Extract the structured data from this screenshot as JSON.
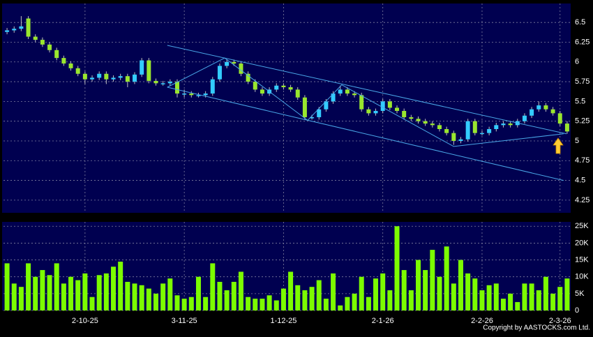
{
  "chart_data": [
    {
      "type": "candlestick",
      "up_color": "#33ccff",
      "down_color": "#99e62e",
      "wick_color": "#c0c0c0",
      "grid": true,
      "ylim": [
        4.09,
        6.74
      ],
      "yticks": [
        4.25,
        4.5,
        4.75,
        5,
        5.25,
        5.5,
        5.75,
        6,
        6.25,
        6.5
      ],
      "open": [
        6.38,
        6.4,
        6.42,
        6.55,
        6.32,
        6.28,
        6.22,
        6.15,
        6.05,
        5.98,
        5.92,
        5.85,
        5.78,
        5.8,
        5.85,
        5.78,
        5.8,
        5.82,
        5.75,
        5.84,
        6.02,
        5.76,
        5.73,
        5.73,
        5.75,
        5.6,
        5.6,
        5.58,
        5.58,
        5.6,
        5.78,
        5.95,
        6.0,
        5.98,
        5.85,
        5.75,
        5.65,
        5.6,
        5.65,
        5.7,
        5.68,
        5.65,
        5.55,
        5.3,
        5.3,
        5.4,
        5.5,
        5.6,
        5.65,
        5.6,
        5.58,
        5.4,
        5.35,
        5.38,
        5.5,
        5.42,
        5.38,
        5.3,
        5.28,
        5.25,
        5.22,
        5.2,
        5.15,
        5.1,
        5.0,
        5.02,
        5.25,
        5.1,
        5.1,
        5.15,
        5.2,
        5.22,
        5.2,
        5.25,
        5.32,
        5.4,
        5.45,
        5.4,
        5.35,
        5.22
      ],
      "high": [
        6.43,
        6.45,
        6.58,
        6.58,
        6.35,
        6.31,
        6.25,
        6.18,
        6.08,
        6.01,
        5.95,
        5.88,
        5.83,
        5.88,
        5.88,
        5.83,
        5.85,
        5.85,
        5.87,
        6.05,
        6.05,
        5.79,
        5.76,
        5.78,
        5.78,
        5.65,
        5.63,
        5.61,
        5.63,
        5.81,
        5.98,
        6.03,
        6.03,
        6.01,
        5.88,
        5.78,
        5.68,
        5.68,
        5.73,
        5.73,
        5.71,
        5.68,
        5.58,
        5.33,
        5.43,
        5.53,
        5.63,
        5.7,
        5.68,
        5.63,
        5.61,
        5.43,
        5.41,
        5.53,
        5.53,
        5.45,
        5.41,
        5.33,
        5.31,
        5.28,
        5.25,
        5.23,
        5.18,
        5.13,
        5.05,
        5.28,
        5.28,
        5.13,
        5.18,
        5.23,
        5.25,
        5.25,
        5.28,
        5.35,
        5.43,
        5.5,
        5.48,
        5.43,
        5.38,
        5.25
      ],
      "low": [
        6.35,
        6.37,
        6.39,
        6.29,
        6.25,
        6.19,
        6.12,
        6.02,
        5.95,
        5.89,
        5.82,
        5.72,
        5.75,
        5.77,
        5.72,
        5.75,
        5.77,
        5.68,
        5.72,
        5.81,
        5.73,
        5.7,
        5.7,
        5.7,
        5.55,
        5.55,
        5.55,
        5.55,
        5.55,
        5.57,
        5.75,
        5.92,
        5.95,
        5.82,
        5.72,
        5.62,
        5.57,
        5.57,
        5.62,
        5.65,
        5.62,
        5.52,
        5.27,
        5.27,
        5.27,
        5.37,
        5.47,
        5.57,
        5.57,
        5.55,
        5.37,
        5.32,
        5.32,
        5.35,
        5.39,
        5.35,
        5.27,
        5.25,
        5.22,
        5.19,
        5.17,
        5.12,
        5.07,
        4.95,
        4.97,
        4.99,
        5.07,
        5.07,
        5.07,
        5.12,
        5.17,
        5.17,
        5.17,
        5.22,
        5.29,
        5.37,
        5.37,
        5.32,
        5.19,
        5.09
      ],
      "close": [
        6.4,
        6.42,
        6.45,
        6.32,
        6.28,
        6.22,
        6.15,
        6.05,
        5.98,
        5.92,
        5.85,
        5.78,
        5.8,
        5.85,
        5.78,
        5.8,
        5.82,
        5.75,
        5.84,
        6.02,
        5.76,
        5.73,
        5.73,
        5.75,
        5.6,
        5.6,
        5.58,
        5.58,
        5.6,
        5.78,
        5.95,
        6.0,
        5.98,
        5.85,
        5.75,
        5.65,
        5.6,
        5.65,
        5.7,
        5.68,
        5.65,
        5.55,
        5.3,
        5.3,
        5.4,
        5.5,
        5.6,
        5.65,
        5.6,
        5.58,
        5.4,
        5.35,
        5.38,
        5.5,
        5.42,
        5.38,
        5.3,
        5.28,
        5.25,
        5.22,
        5.2,
        5.15,
        5.1,
        5.0,
        5.02,
        5.25,
        5.1,
        5.1,
        5.15,
        5.2,
        5.22,
        5.2,
        5.25,
        5.32,
        5.4,
        5.45,
        5.4,
        5.35,
        5.22,
        5.12
      ],
      "trendlines": [
        {
          "color": "#4aa8e8",
          "x": [
            22.6,
            78.9
          ],
          "y": [
            6.21,
            5.09
          ]
        },
        {
          "color": "#4aa8e8",
          "x": [
            22.6,
            78.5
          ],
          "y": [
            5.68,
            4.5
          ]
        },
        {
          "color": "#4aa8e8",
          "x": [
            22.6,
            30.7,
            42.4,
            47.2,
            63.0,
            78.5
          ],
          "y": [
            5.68,
            6.05,
            5.26,
            5.71,
            4.93,
            5.09
          ]
        }
      ]
    },
    {
      "type": "bar",
      "color": "#7cfc00",
      "grid": true,
      "categories": [
        null,
        null,
        null,
        null,
        null,
        null,
        null,
        null,
        null,
        null,
        null,
        "2-10-25",
        null,
        null,
        null,
        null,
        null,
        null,
        null,
        null,
        null,
        null,
        null,
        null,
        null,
        "3-11-25",
        null,
        null,
        null,
        null,
        null,
        null,
        null,
        null,
        null,
        null,
        null,
        null,
        null,
        "1-12-25",
        null,
        null,
        null,
        null,
        null,
        null,
        null,
        null,
        null,
        null,
        null,
        null,
        null,
        "2-1-26",
        null,
        null,
        null,
        null,
        null,
        null,
        null,
        null,
        null,
        null,
        null,
        null,
        null,
        "2-2-26",
        null,
        null,
        null,
        null,
        null,
        null,
        null,
        null,
        null,
        null,
        "2-3-26",
        null
      ],
      "values": [
        14000,
        8000,
        7000,
        14000,
        10000,
        12000,
        10500,
        14000,
        8000,
        10000,
        9000,
        11000,
        4000,
        10500,
        11000,
        13000,
        14500,
        8500,
        8000,
        7500,
        6500,
        5000,
        8000,
        9500,
        4500,
        3500,
        4000,
        10000,
        4000,
        14000,
        8500,
        6000,
        8500,
        11500,
        4000,
        3500,
        3500,
        4500,
        3000,
        6500,
        11500,
        7500,
        6000,
        7000,
        9000,
        3500,
        11000,
        1500,
        4000,
        5000,
        10000,
        4000,
        9500,
        11000,
        6000,
        25000,
        12000,
        6000,
        15000,
        12000,
        18000,
        10000,
        19000,
        8000,
        15000,
        11000,
        9500,
        6000,
        7500,
        8000,
        3500,
        5000,
        2500,
        8000,
        8000,
        6000,
        10000,
        5000,
        7000,
        9500
      ],
      "ylim": [
        0,
        26300
      ],
      "yticks": [
        0,
        {
          "value": 5000,
          "label": "5K"
        },
        {
          "value": 10000,
          "label": "10K"
        },
        {
          "value": 15000,
          "label": "15K"
        },
        {
          "value": 20000,
          "label": "20K"
        },
        {
          "value": 25000,
          "label": "25K"
        }
      ]
    }
  ],
  "footer": "Copyright by AASTOCKS.com Ltd."
}
